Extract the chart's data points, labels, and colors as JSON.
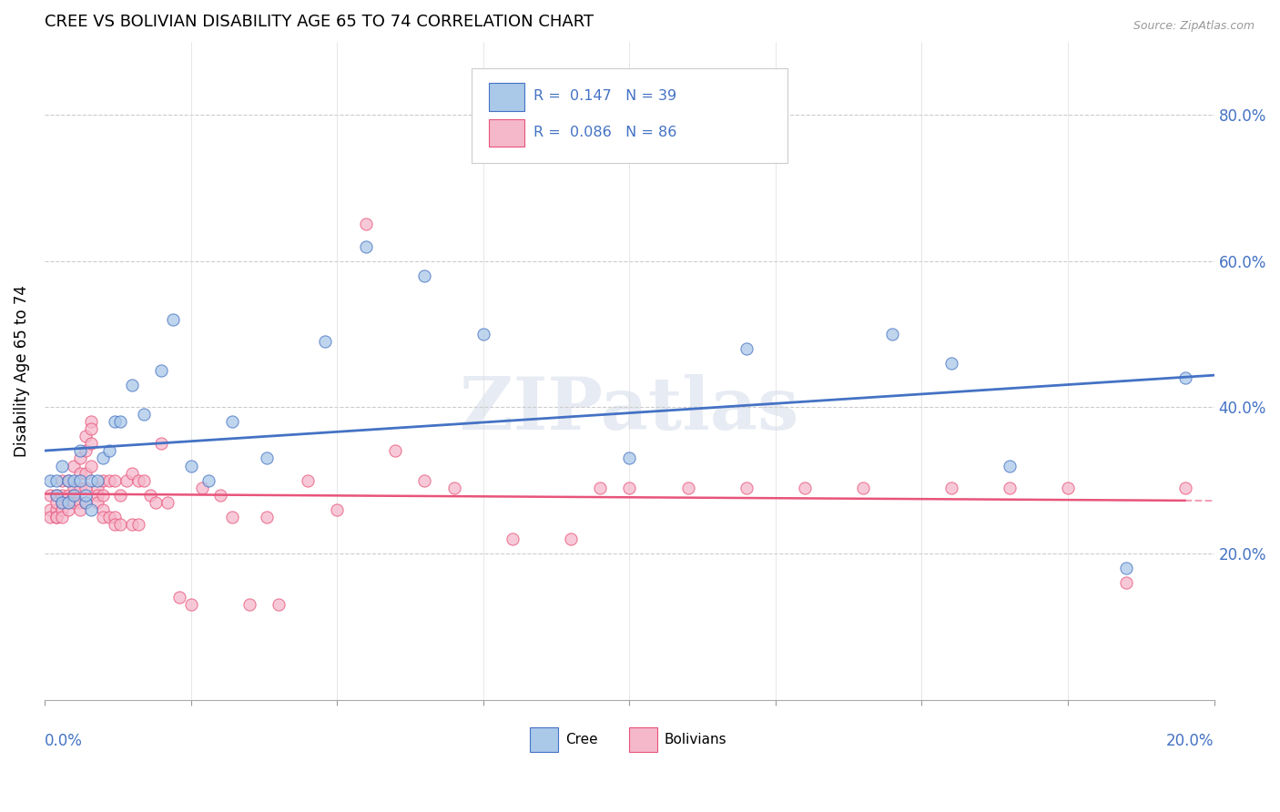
{
  "title": "CREE VS BOLIVIAN DISABILITY AGE 65 TO 74 CORRELATION CHART",
  "source": "Source: ZipAtlas.com",
  "ylabel": "Disability Age 65 to 74",
  "ytick_values": [
    0.2,
    0.4,
    0.6,
    0.8
  ],
  "xlim": [
    0.0,
    0.2
  ],
  "ylim": [
    0.0,
    0.9
  ],
  "legend_r_cree": "0.147",
  "legend_n_cree": "39",
  "legend_r_bolivian": "0.086",
  "legend_n_bolivian": "86",
  "cree_color": "#aac8e8",
  "bolivian_color": "#f5b8cb",
  "cree_line_color": "#4472c4",
  "bolivian_line_color": "#e8547a",
  "watermark_text": "ZIPatlas",
  "cree_x": [
    0.001,
    0.002,
    0.002,
    0.003,
    0.003,
    0.004,
    0.004,
    0.005,
    0.005,
    0.006,
    0.006,
    0.007,
    0.007,
    0.008,
    0.008,
    0.009,
    0.01,
    0.011,
    0.012,
    0.013,
    0.015,
    0.017,
    0.02,
    0.022,
    0.025,
    0.028,
    0.032,
    0.038,
    0.048,
    0.055,
    0.065,
    0.075,
    0.1,
    0.12,
    0.145,
    0.155,
    0.165,
    0.185,
    0.195
  ],
  "cree_y": [
    0.3,
    0.3,
    0.28,
    0.32,
    0.27,
    0.3,
    0.27,
    0.3,
    0.28,
    0.3,
    0.34,
    0.27,
    0.28,
    0.3,
    0.26,
    0.3,
    0.33,
    0.34,
    0.38,
    0.38,
    0.43,
    0.39,
    0.45,
    0.52,
    0.32,
    0.3,
    0.38,
    0.33,
    0.49,
    0.62,
    0.58,
    0.5,
    0.33,
    0.48,
    0.5,
    0.46,
    0.32,
    0.18,
    0.44
  ],
  "bolivian_x": [
    0.001,
    0.001,
    0.001,
    0.002,
    0.002,
    0.002,
    0.002,
    0.002,
    0.003,
    0.003,
    0.003,
    0.003,
    0.003,
    0.004,
    0.004,
    0.004,
    0.004,
    0.005,
    0.005,
    0.005,
    0.005,
    0.006,
    0.006,
    0.006,
    0.006,
    0.006,
    0.007,
    0.007,
    0.007,
    0.007,
    0.007,
    0.008,
    0.008,
    0.008,
    0.008,
    0.009,
    0.009,
    0.009,
    0.01,
    0.01,
    0.01,
    0.01,
    0.011,
    0.011,
    0.012,
    0.012,
    0.012,
    0.013,
    0.013,
    0.014,
    0.015,
    0.015,
    0.016,
    0.016,
    0.017,
    0.018,
    0.019,
    0.02,
    0.021,
    0.023,
    0.025,
    0.027,
    0.03,
    0.032,
    0.035,
    0.038,
    0.04,
    0.045,
    0.05,
    0.055,
    0.06,
    0.065,
    0.07,
    0.08,
    0.09,
    0.095,
    0.1,
    0.11,
    0.12,
    0.13,
    0.14,
    0.155,
    0.165,
    0.175,
    0.185,
    0.195
  ],
  "bolivian_y": [
    0.26,
    0.25,
    0.28,
    0.28,
    0.26,
    0.25,
    0.27,
    0.25,
    0.3,
    0.27,
    0.26,
    0.25,
    0.28,
    0.3,
    0.28,
    0.27,
    0.26,
    0.32,
    0.29,
    0.28,
    0.27,
    0.33,
    0.31,
    0.29,
    0.27,
    0.26,
    0.36,
    0.34,
    0.31,
    0.29,
    0.27,
    0.38,
    0.37,
    0.35,
    0.32,
    0.29,
    0.28,
    0.27,
    0.3,
    0.28,
    0.26,
    0.25,
    0.3,
    0.25,
    0.3,
    0.25,
    0.24,
    0.28,
    0.24,
    0.3,
    0.31,
    0.24,
    0.3,
    0.24,
    0.3,
    0.28,
    0.27,
    0.35,
    0.27,
    0.14,
    0.13,
    0.29,
    0.28,
    0.25,
    0.13,
    0.25,
    0.13,
    0.3,
    0.26,
    0.65,
    0.34,
    0.3,
    0.29,
    0.22,
    0.22,
    0.29,
    0.29,
    0.29,
    0.29,
    0.29,
    0.29,
    0.29,
    0.29,
    0.29,
    0.16,
    0.29
  ]
}
